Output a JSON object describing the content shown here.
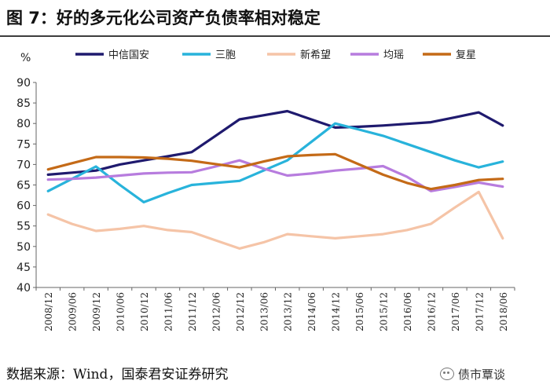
{
  "header": {
    "title": "图  7：好的多元化公司资产负债率相对稳定"
  },
  "footer": {
    "source": "数据来源：Wind，国泰君安证券研究",
    "badge_text": "债市覃谈",
    "badge_icon": "wechat-icon"
  },
  "chart_data": {
    "type": "line",
    "title": "",
    "xlabel": "",
    "ylabel": "%",
    "ylim": [
      40,
      90
    ],
    "yticks": [
      40,
      45,
      50,
      55,
      60,
      65,
      70,
      75,
      80,
      85,
      90
    ],
    "grid": false,
    "legend": "top",
    "categories": [
      "2008/12",
      "2009/06",
      "2009/12",
      "2010/06",
      "2010/12",
      "2011/06",
      "2011/12",
      "2012/06",
      "2012/12",
      "2013/06",
      "2013/12",
      "2014/06",
      "2014/12",
      "2015/06",
      "2015/12",
      "2016/06",
      "2016/12",
      "2017/06",
      "2017/12",
      "2018/06"
    ],
    "series": [
      {
        "name": "中信国安",
        "color": "#1f1a6e",
        "values": [
          67.5,
          68.0,
          68.5,
          70.0,
          71.0,
          72.0,
          73.0,
          77.0,
          81.0,
          82.0,
          83.0,
          81.0,
          79.0,
          79.2,
          79.5,
          79.9,
          80.3,
          81.5,
          82.7,
          79.5
        ]
      },
      {
        "name": "三胞",
        "color": "#28b3db",
        "values": [
          63.5,
          66.5,
          69.5,
          65.0,
          60.8,
          63.0,
          65.0,
          65.5,
          66.0,
          68.5,
          71.0,
          75.5,
          80.0,
          78.5,
          77.0,
          75.0,
          73.0,
          71.0,
          69.3,
          70.7
        ]
      },
      {
        "name": "新希望",
        "color": "#f5c4a7",
        "values": [
          57.8,
          55.5,
          53.8,
          54.3,
          55.0,
          54.0,
          53.5,
          51.5,
          49.5,
          51.0,
          53.0,
          52.5,
          52.0,
          52.5,
          53.0,
          54.0,
          55.5,
          59.5,
          63.3,
          52.0
        ]
      },
      {
        "name": "均瑶",
        "color": "#b77cde",
        "values": [
          66.3,
          66.5,
          66.8,
          67.3,
          67.8,
          68.0,
          68.1,
          69.5,
          71.0,
          69.0,
          67.3,
          67.8,
          68.5,
          69.0,
          69.6,
          67.0,
          63.5,
          64.5,
          65.6,
          64.6
        ]
      },
      {
        "name": "复星",
        "color": "#c46a17",
        "values": [
          68.8,
          70.3,
          71.8,
          71.8,
          71.7,
          71.4,
          70.9,
          70.1,
          69.3,
          70.7,
          72.0,
          72.3,
          72.5,
          70.0,
          67.5,
          65.5,
          64.0,
          65.0,
          66.2,
          66.5
        ]
      }
    ]
  }
}
